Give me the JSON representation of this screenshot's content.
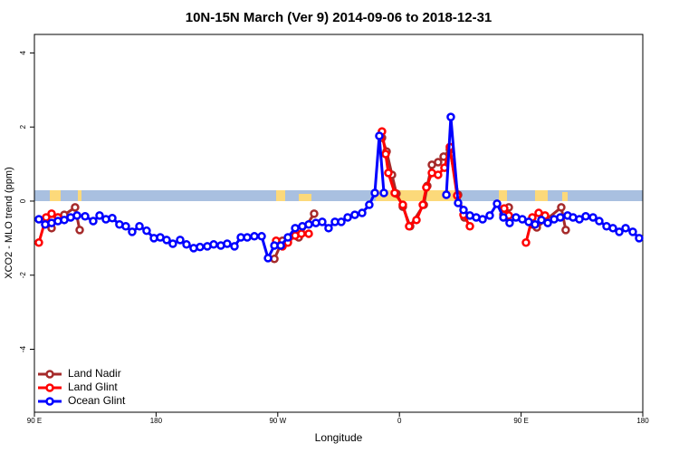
{
  "chart_data": {
    "type": "line",
    "title": "10N-15N March (Ver 9)   2014-09-06 to 2018-12-31",
    "x_label": "Longitude",
    "y_label": "XCO2 - MLO trend (ppm)",
    "xlim": [
      90,
      540
    ],
    "ylim": [
      -5.7,
      4.5
    ],
    "xticks": [
      {
        "value": 90,
        "label": "90 E"
      },
      180,
      {
        "value": 270,
        "label": "90 W"
      },
      {
        "value": 360,
        "label": "0"
      },
      {
        "value": 450,
        "label": "90 E"
      },
      {
        "value": 540,
        "label": "180"
      }
    ],
    "yticks": [
      -4,
      -2,
      0,
      2,
      4
    ],
    "legend": "bottomleft",
    "series": [
      {
        "name": "Land Nadir",
        "color": "#a52a2a",
        "x": [
          102.7,
          107.4,
          112.1,
          120.1,
          123.5,
          null,
          267.5,
          273.5,
          null,
          285.5,
          296.9,
          null,
          347.1,
          350.5,
          354.5,
          357.8,
          362.5,
          367.9,
          378.0,
          380.6,
          384.0,
          388.6,
          392.7,
          397.3,
          403.4,
          408.1,
          null,
          436.9,
          440.9,
          null,
          458.3,
          461.6,
          479.7,
          483.0
        ],
        "values": [
          -0.73,
          -0.44,
          -0.37,
          -0.17,
          -0.78,
          null,
          -1.56,
          -1.07,
          null,
          -0.98,
          -0.34,
          null,
          1.71,
          1.34,
          0.71,
          0.2,
          -0.15,
          -0.68,
          -0.1,
          0.41,
          0.98,
          1.05,
          1.2,
          1.39,
          0.17,
          -0.44,
          null,
          -0.37,
          -0.17,
          null,
          -0.63,
          -0.71,
          -0.17,
          -0.78
        ]
      },
      {
        "name": "Land Glint",
        "color": "#ff0000",
        "x": [
          93.3,
          98.7,
          102.7,
          107.4,
          null,
          268.8,
          273.5,
          277.5,
          282.9,
          287.5,
          292.9,
          null,
          347.1,
          349.8,
          351.8,
          356.5,
          362.5,
          367.2,
          372.6,
          377.3,
          379.9,
          384.0,
          388.6,
          393.3,
          397.3,
          402.7,
          407.4,
          412.1,
          null,
          437.5,
          440.9,
          null,
          453.6,
          458.3,
          463.0,
          467.7
        ],
        "values": [
          -1.12,
          -0.44,
          -0.34,
          -0.44,
          null,
          -1.07,
          -1.22,
          -1.12,
          -0.93,
          -0.88,
          -0.88,
          null,
          1.88,
          1.27,
          0.76,
          0.22,
          -0.1,
          -0.68,
          -0.51,
          -0.1,
          0.37,
          0.76,
          0.71,
          0.9,
          1.46,
          0.15,
          -0.37,
          -0.68,
          null,
          -0.2,
          -0.39,
          null,
          -1.12,
          -0.44,
          -0.32,
          -0.39
        ]
      },
      {
        "name": "Ocean Glint",
        "color": "#0000ff",
        "x": [
          93.3,
          98.0,
          102.7,
          107.4,
          112.1,
          116.8,
          121.5,
          127.5,
          133.5,
          138.2,
          142.9,
          147.6,
          152.9,
          157.6,
          162.3,
          167.7,
          173.0,
          178.4,
          183.1,
          187.8,
          192.4,
          197.8,
          202.5,
          207.8,
          212.5,
          217.9,
          222.6,
          227.9,
          232.6,
          238.0,
          242.7,
          247.4,
          252.7,
          258.1,
          262.8,
          267.5,
          272.2,
          277.5,
          282.9,
          288.2,
          292.9,
          298.2,
          302.9,
          307.6,
          312.3,
          317.0,
          321.7,
          327.0,
          332.4,
          337.7,
          341.8,
          345.1,
          348.5,
          null,
          394.7,
          398.0,
          403.4,
          407.4,
          412.1,
          416.8,
          421.5,
          426.8,
          432.2,
          436.9,
          441.5,
          446.2,
          450.9,
          455.6,
          460.3,
          465.0,
          469.7,
          474.4,
          479.0,
          484.4,
          488.4,
          493.1,
          497.8,
          503.2,
          507.8,
          513.2,
          517.9,
          522.6,
          527.3,
          532.6,
          537.3
        ],
        "values": [
          -0.49,
          -0.63,
          -0.59,
          -0.54,
          -0.51,
          -0.44,
          -0.39,
          -0.41,
          -0.54,
          -0.39,
          -0.49,
          -0.46,
          -0.63,
          -0.68,
          -0.83,
          -0.68,
          -0.8,
          -1.0,
          -0.98,
          -1.05,
          -1.15,
          -1.05,
          -1.17,
          -1.27,
          -1.24,
          -1.22,
          -1.17,
          -1.2,
          -1.15,
          -1.22,
          -0.98,
          -0.98,
          -0.95,
          -0.95,
          -1.54,
          -1.2,
          -1.2,
          -0.98,
          -0.73,
          -0.68,
          -0.63,
          -0.59,
          -0.56,
          -0.73,
          -0.56,
          -0.56,
          -0.44,
          -0.37,
          -0.32,
          -0.1,
          0.22,
          1.76,
          0.22,
          null,
          0.17,
          2.27,
          -0.05,
          -0.24,
          -0.39,
          -0.44,
          -0.49,
          -0.39,
          -0.07,
          -0.44,
          -0.59,
          -0.44,
          -0.49,
          -0.56,
          -0.63,
          -0.51,
          -0.59,
          -0.49,
          -0.44,
          -0.39,
          -0.44,
          -0.49,
          -0.41,
          -0.44,
          -0.54,
          -0.68,
          -0.73,
          -0.83,
          -0.73,
          -0.83,
          -1.0
        ]
      }
    ]
  }
}
